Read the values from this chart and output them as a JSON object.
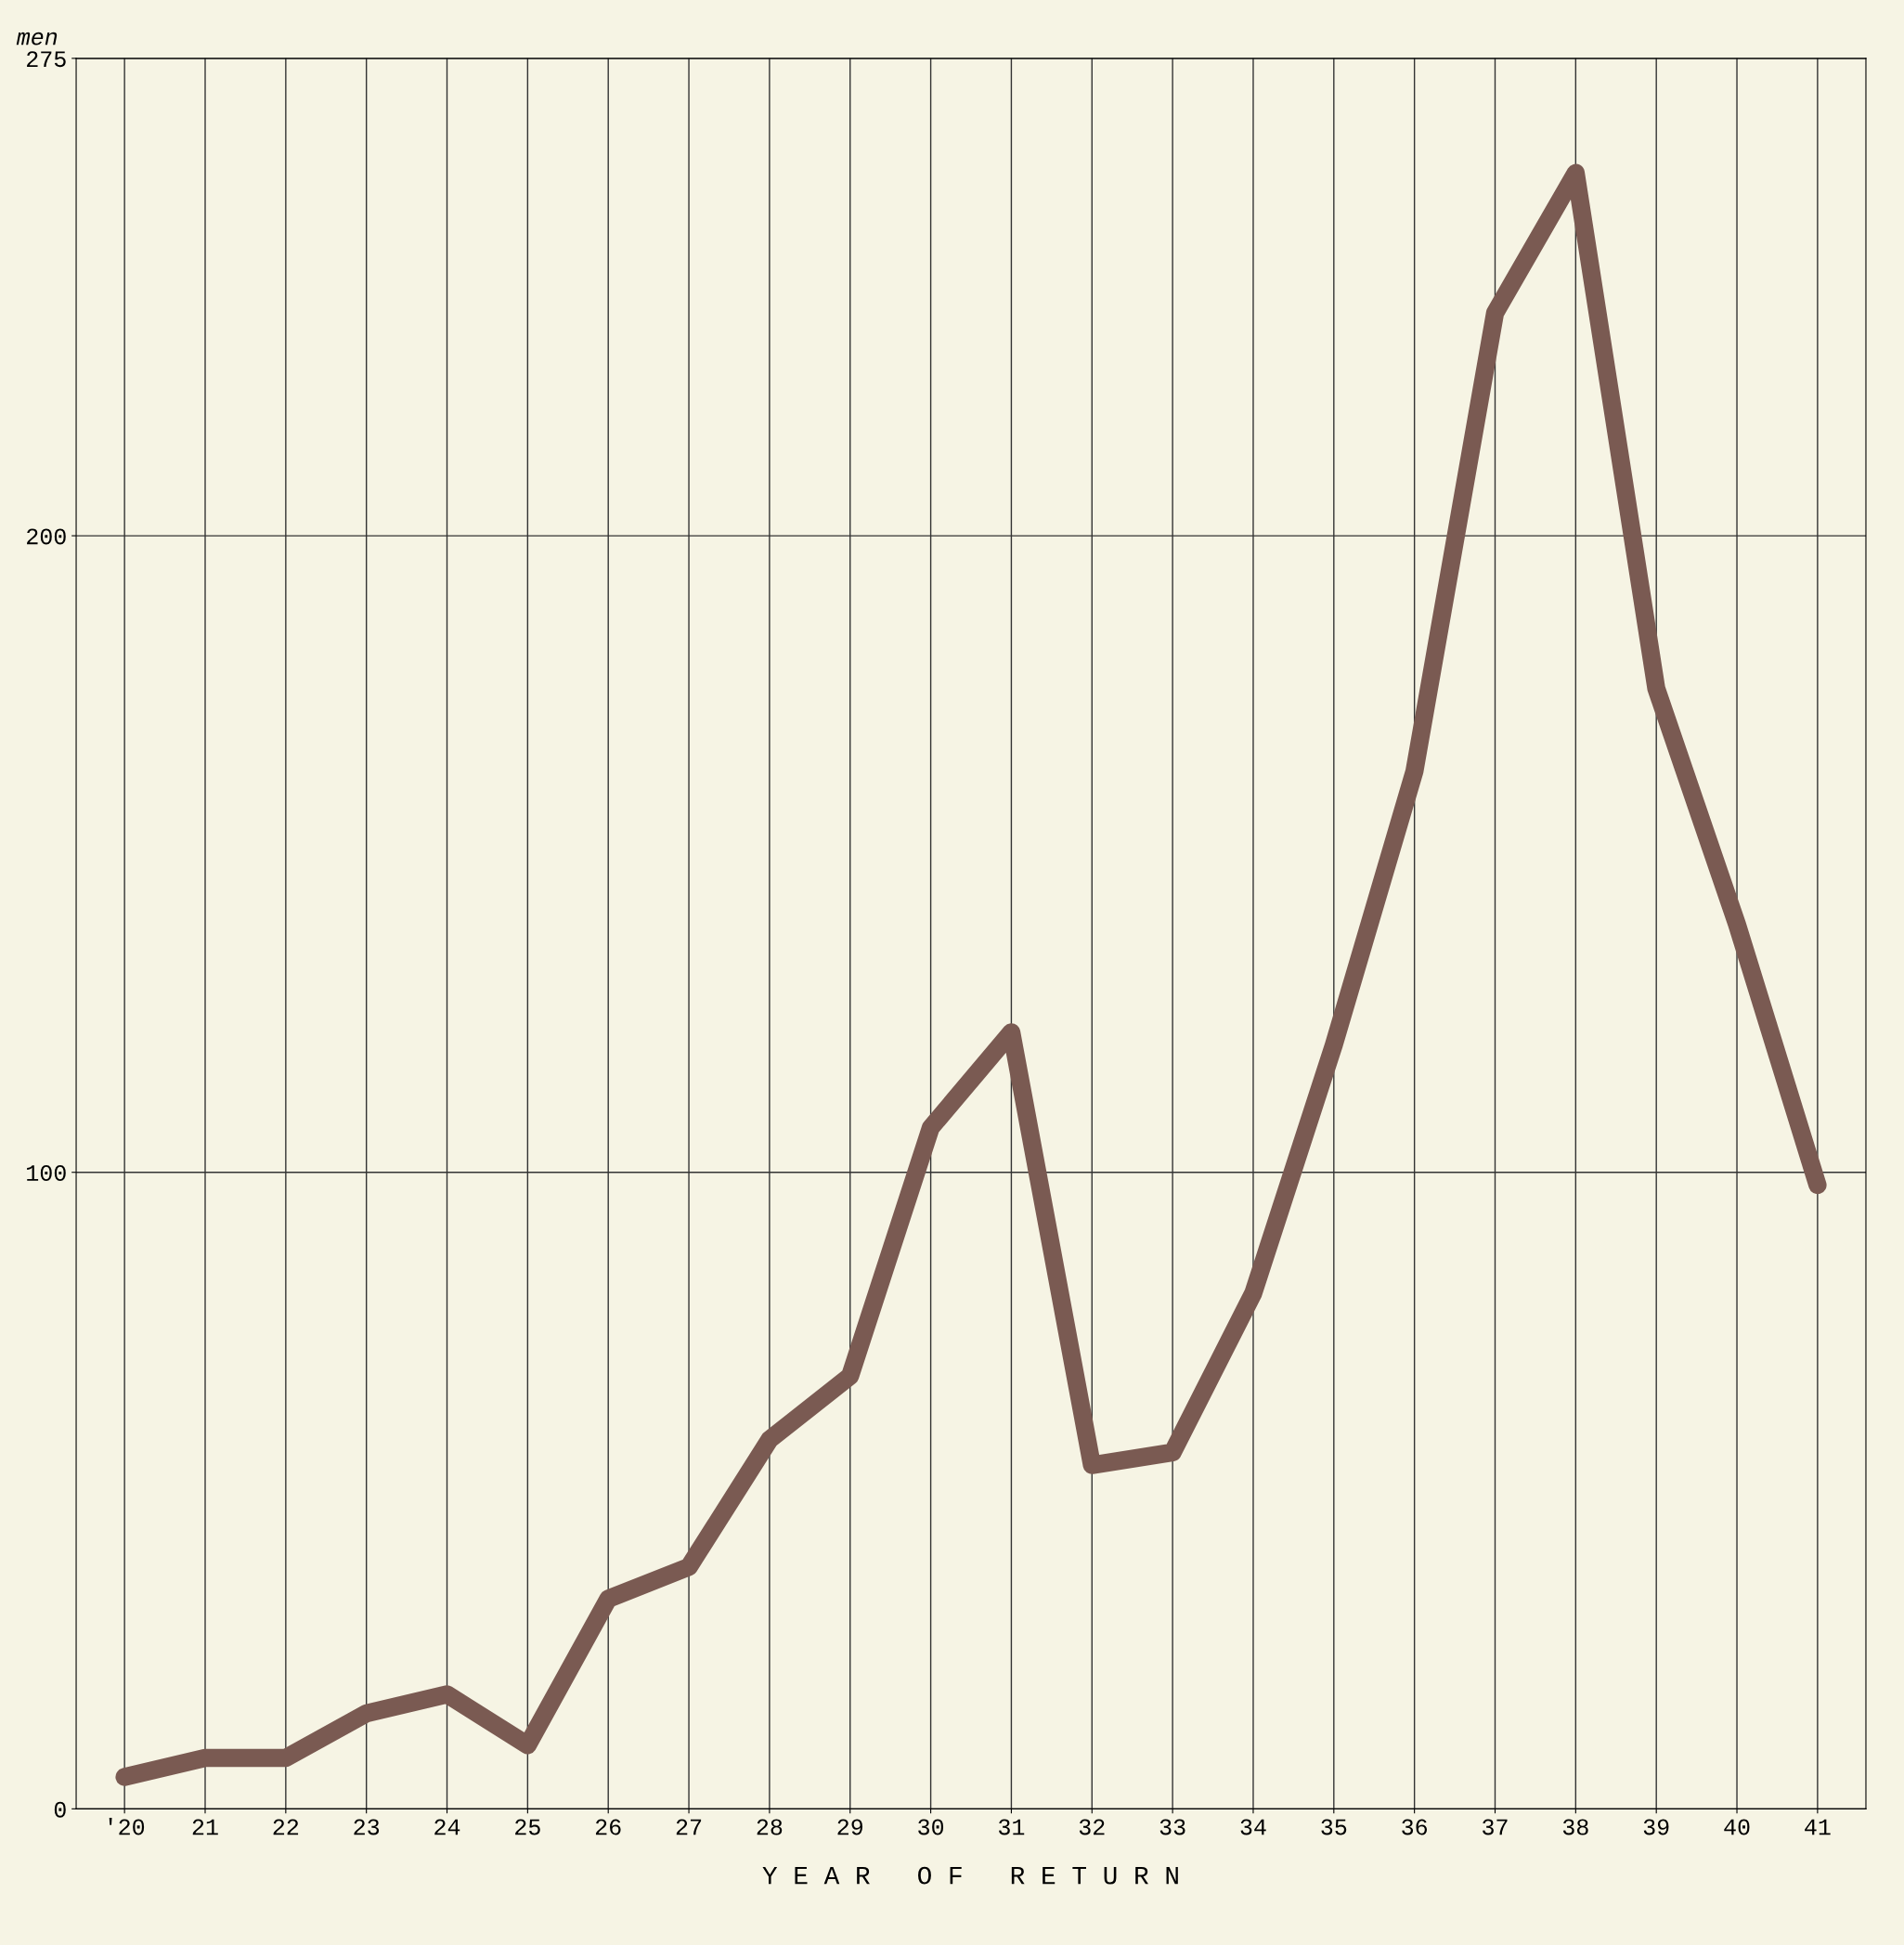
{
  "chart_data": {
    "type": "line",
    "ylabel": "men",
    "xlabel": "Y E A R   O F   R E T U R N",
    "categories": [
      "'20",
      "21",
      "22",
      "23",
      "24",
      "25",
      "26",
      "27",
      "28",
      "29",
      "30",
      "31",
      "32",
      "33",
      "34",
      "35",
      "36",
      "37",
      "38",
      "39",
      "40",
      "41"
    ],
    "series": [
      {
        "color": "#7a5a52",
        "values": [
          5,
          8,
          8,
          15,
          18,
          10,
          33,
          38,
          58,
          68,
          107,
          122,
          54,
          56,
          81,
          120,
          163,
          235,
          257,
          176,
          139,
          98
        ]
      }
    ],
    "ylim": [
      0,
      275
    ],
    "yticks": [
      0,
      100,
      200,
      275
    ],
    "grid": true,
    "line_style": "solid"
  }
}
